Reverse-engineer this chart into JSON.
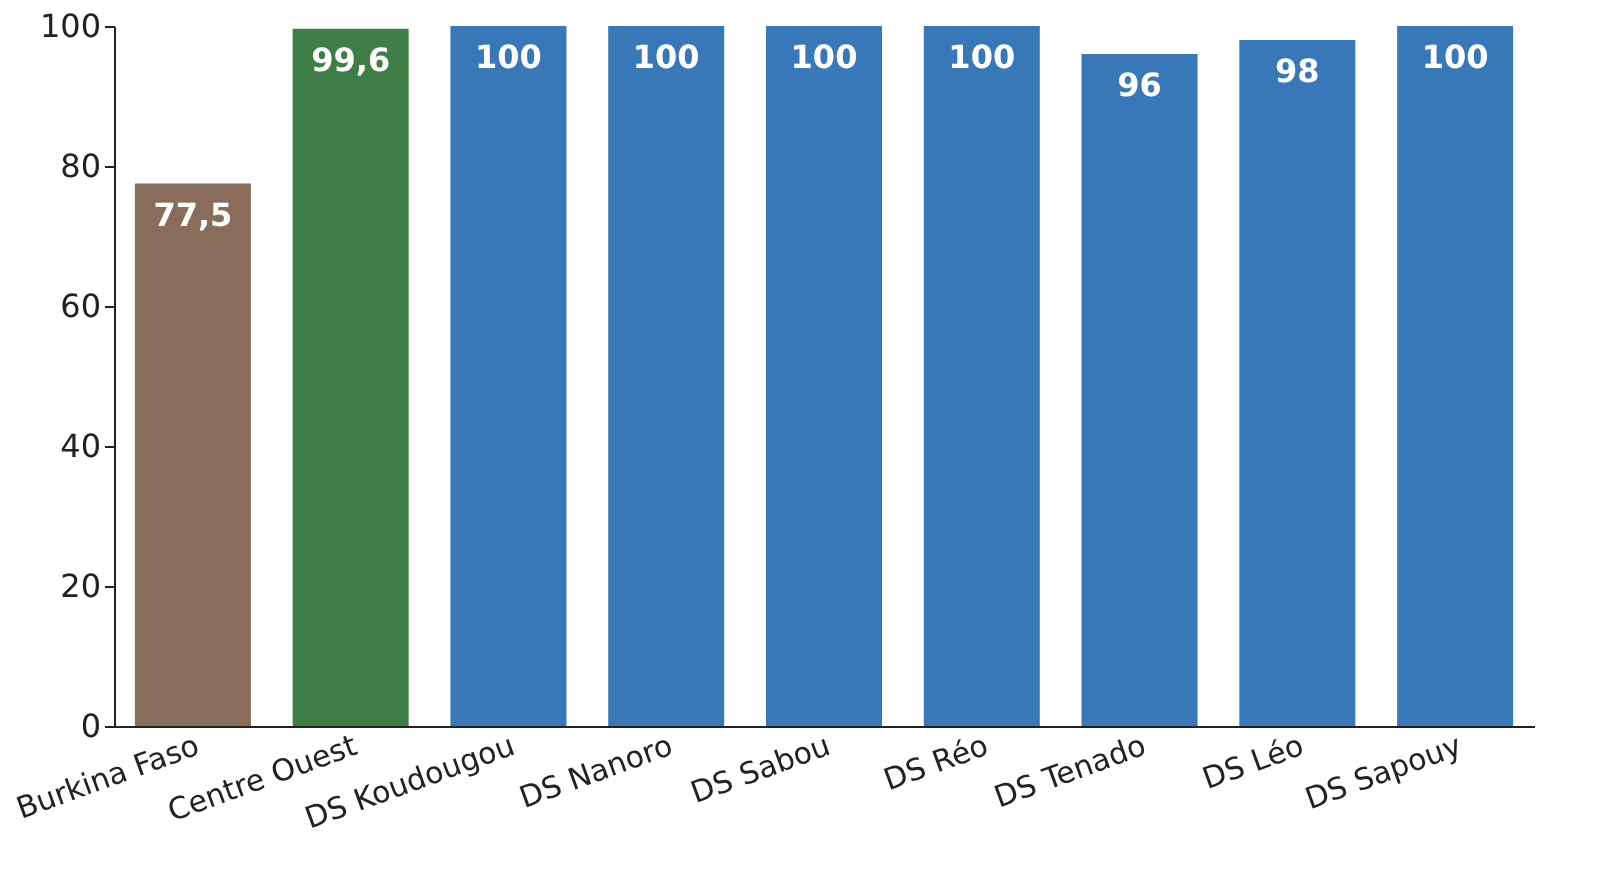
{
  "chart_data": {
    "type": "bar",
    "categories": [
      "Burkina Faso",
      "Centre Ouest",
      "DS Koudougou",
      "DS Nanoro",
      "DS Sabou",
      "DS Réo",
      "DS Tenado",
      "DS Léo",
      "DS Sapouy"
    ],
    "values": [
      77.5,
      99.6,
      100,
      100,
      100,
      100,
      96,
      98,
      100
    ],
    "colors": [
      "#8a6c5a",
      "#3f7f47",
      "#3878b8",
      "#3878b8",
      "#3878b8",
      "#3878b8",
      "#3878b8",
      "#3878b8",
      "#3878b8"
    ],
    "value_labels": [
      "77,5",
      "99,6",
      "100",
      "100",
      "100",
      "100",
      "96",
      "98",
      "100"
    ],
    "ylim": [
      0,
      100
    ],
    "yticks": [
      0,
      20,
      40,
      60,
      80,
      100
    ],
    "grid": false
  }
}
